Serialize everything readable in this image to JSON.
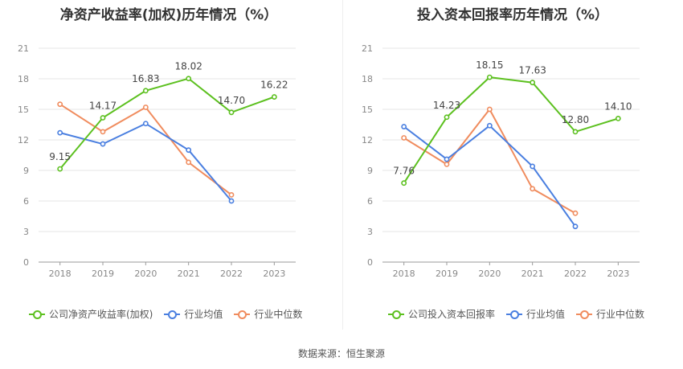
{
  "source_text": "数据来源：恒生聚源",
  "colors": {
    "company": "#5cc01f",
    "industry_avg": "#4a7fe0",
    "industry_median": "#f08c5e"
  },
  "chart_data": [
    {
      "type": "line",
      "title": "净资产收益率(加权)历年情况（%）",
      "categories": [
        "2018",
        "2019",
        "2020",
        "2021",
        "2022",
        "2023"
      ],
      "ylim": [
        0,
        21
      ],
      "yticks": [
        "0",
        "3",
        "6",
        "9",
        "12",
        "15",
        "18",
        "21"
      ],
      "grid": true,
      "legend_position": "bottom",
      "series": [
        {
          "name": "公司净资产收益率(加权)",
          "key": "company",
          "labeled": true,
          "values": [
            9.15,
            14.17,
            16.83,
            18.02,
            14.7,
            16.22
          ],
          "labels": [
            "9.15",
            "14.17",
            "16.83",
            "18.02",
            "14.70",
            "16.22"
          ]
        },
        {
          "name": "行业均值",
          "key": "industry_avg",
          "labeled": false,
          "values": [
            12.7,
            11.6,
            13.6,
            11.0,
            6.0,
            null
          ]
        },
        {
          "name": "行业中位数",
          "key": "industry_median",
          "labeled": false,
          "values": [
            15.5,
            12.8,
            15.2,
            9.8,
            6.6,
            null
          ]
        }
      ]
    },
    {
      "type": "line",
      "title": "投入资本回报率历年情况（%）",
      "categories": [
        "2018",
        "2019",
        "2020",
        "2021",
        "2022",
        "2023"
      ],
      "ylim": [
        0,
        21
      ],
      "yticks": [
        "0",
        "3",
        "6",
        "9",
        "12",
        "15",
        "18",
        "21"
      ],
      "grid": true,
      "legend_position": "bottom",
      "series": [
        {
          "name": "公司投入资本回报率",
          "key": "company",
          "labeled": true,
          "values": [
            7.76,
            14.23,
            18.15,
            17.63,
            12.8,
            14.1
          ],
          "labels": [
            "7.76",
            "14.23",
            "18.15",
            "17.63",
            "12.80",
            "14.10"
          ]
        },
        {
          "name": "行业均值",
          "key": "industry_avg",
          "labeled": false,
          "values": [
            13.3,
            10.1,
            13.4,
            9.4,
            3.5,
            null
          ]
        },
        {
          "name": "行业中位数",
          "key": "industry_median",
          "labeled": false,
          "values": [
            12.2,
            9.6,
            15.0,
            7.2,
            4.8,
            null
          ]
        }
      ]
    }
  ]
}
